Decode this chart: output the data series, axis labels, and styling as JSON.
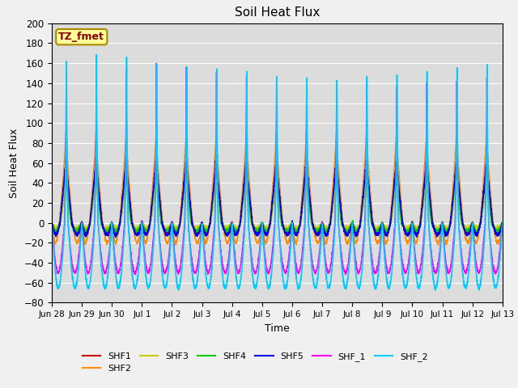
{
  "title": "Soil Heat Flux",
  "xlabel": "Time",
  "ylabel": "Soil Heat Flux",
  "ylim": [
    -80,
    200
  ],
  "yticks": [
    -80,
    -60,
    -40,
    -20,
    0,
    20,
    40,
    60,
    80,
    100,
    120,
    140,
    160,
    180,
    200
  ],
  "xtick_labels": [
    "Jun 28",
    "Jun 29",
    "Jun 30",
    "Jul 1",
    "Jul 2",
    "Jul 3",
    "Jul 4",
    "Jul 5",
    "Jul 6",
    "Jul 7",
    "Jul 8",
    "Jul 9",
    "Jul 10",
    "Jul 11",
    "Jul 12",
    "Jul 13"
  ],
  "annotation_text": "TZ_fmet",
  "annotation_color": "#8B0000",
  "annotation_bg": "#FFFF99",
  "series_colors": {
    "SHF1": "#CC0000",
    "SHF2": "#FF8C00",
    "SHF3": "#CCCC00",
    "SHF4": "#00CC00",
    "SHF5": "#0000EE",
    "SHF_1": "#FF00FF",
    "SHF_2": "#00CCFF"
  },
  "series_linewidths": {
    "SHF1": 1.0,
    "SHF2": 1.0,
    "SHF3": 1.0,
    "SHF4": 1.0,
    "SHF5": 1.2,
    "SHF_1": 1.0,
    "SHF_2": 1.2
  },
  "bg_color": "#DCDCDC",
  "fig_facecolor": "#F0F0F0",
  "n_days": 15,
  "points_per_day": 288
}
